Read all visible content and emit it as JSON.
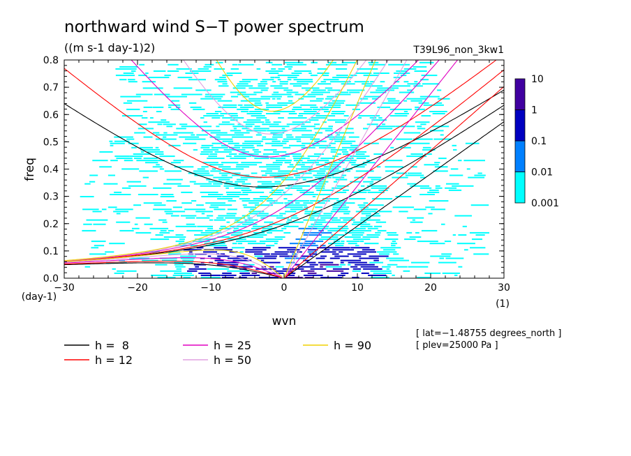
{
  "chart_data": {
    "type": "heatmap",
    "title": "northward wind S−T power spectrum",
    "units": "((m s-1 day-1)2)",
    "run_label": "T39L96_non_3kw1",
    "xlabel": "wvn",
    "ylabel": "freq",
    "x_unit": "(1)",
    "y_unit": "(day-1)",
    "xlim": [
      -30,
      30
    ],
    "ylim": [
      0,
      0.8
    ],
    "x_ticks": [
      -30,
      -20,
      -10,
      0,
      10,
      20,
      30
    ],
    "x_tick_labels": [
      "−30",
      "−20",
      "−10",
      "0",
      "10",
      "20",
      "30"
    ],
    "y_ticks": [
      0,
      0.1,
      0.2,
      0.3,
      0.4,
      0.5,
      0.6,
      0.7,
      0.8
    ],
    "y_tick_labels": [
      "0.0",
      "0.1",
      "0.2",
      "0.3",
      "0.4",
      "0.5",
      "0.6",
      "0.7",
      "0.8"
    ],
    "colorbar": {
      "levels": [
        0.001,
        0.01,
        0.1,
        1,
        10
      ],
      "labels": [
        "0.001",
        "0.01",
        "0.1",
        "1",
        "10"
      ],
      "colors": [
        "#00ffff",
        "#0080ff",
        "#0000c0",
        "#4000a0"
      ]
    },
    "dispersion_curves": [
      {
        "h": 8,
        "label": "h =  8",
        "color": "#000000"
      },
      {
        "h": 12,
        "label": "h = 12",
        "color": "#ff0000"
      },
      {
        "h": 25,
        "label": "h = 25",
        "color": "#e000c0"
      },
      {
        "h": 50,
        "label": "h = 50",
        "color": "#e0a0e0"
      },
      {
        "h": 90,
        "label": "h = 90",
        "color": "#f0d000"
      }
    ],
    "annotations": [
      "[ lat=−1.48755 degrees_north ]",
      "[ plev=25000 Pa ]"
    ]
  }
}
